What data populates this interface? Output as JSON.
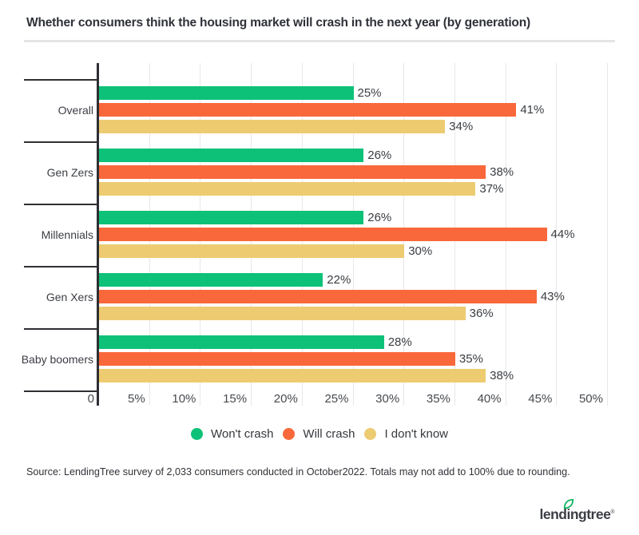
{
  "title": "Whether consumers think the housing market will crash in the next year (by generation)",
  "chart_data": {
    "type": "bar",
    "orientation": "horizontal",
    "title": "Whether consumers think the housing market will crash in the next year (by generation)",
    "categories": [
      "Overall",
      "Gen Zers",
      "Millennials",
      "Gen Xers",
      "Baby boomers"
    ],
    "series": [
      {
        "name": "Won't crash",
        "color": "#0ec178",
        "values": [
          25,
          26,
          26,
          22,
          28
        ]
      },
      {
        "name": "Will crash",
        "color": "#f9683a",
        "values": [
          41,
          38,
          44,
          43,
          35
        ]
      },
      {
        "name": "I don't know",
        "color": "#edcb71",
        "values": [
          34,
          37,
          30,
          36,
          38
        ]
      }
    ],
    "value_suffix": "%",
    "xlim": [
      0,
      50
    ],
    "x_ticks": [
      "0",
      "5%",
      "10%",
      "15%",
      "20%",
      "25%",
      "30%",
      "35%",
      "40%",
      "45%",
      "50%"
    ],
    "grid": true,
    "gridline_color": "#e8e8e8",
    "axis_color": "#2d2f33",
    "legend_position": "bottom"
  },
  "source": "Source: LendingTree survey of 2,033 consumers conducted in October2022. Totals may not add to 100% due to rounding.",
  "logo": {
    "part1": "lend",
    "part2": "i",
    "part3": "ngtree",
    "registered": "®",
    "leaf_color": "#0bb45e"
  }
}
